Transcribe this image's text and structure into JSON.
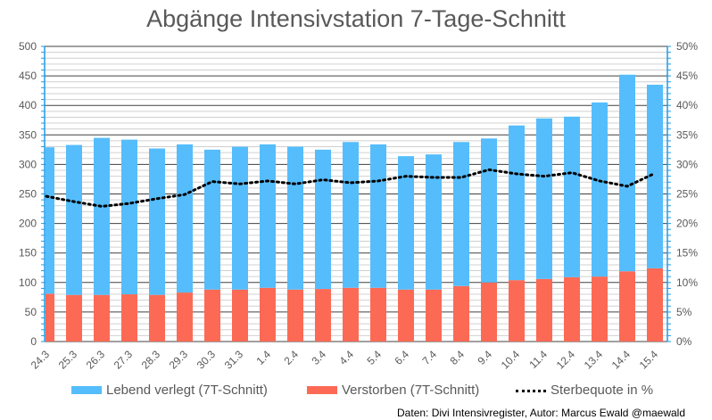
{
  "chart_data": {
    "type": "bar",
    "title": "Abgänge Intensivstation 7-Tage-Schnitt",
    "categories": [
      "24.3",
      "25.3",
      "26.3",
      "27.3",
      "28.3",
      "29.3",
      "30.3",
      "31.3",
      "1.4",
      "2.4",
      "3.4",
      "4.4",
      "5.4",
      "6.4",
      "7.4",
      "8.4",
      "9.4",
      "10.4",
      "11.4",
      "12.4",
      "13.4",
      "14.4",
      "15.4"
    ],
    "series": [
      {
        "name": "Lebend verlegt (7T-Schnitt)",
        "type": "bar-stacked",
        "color": "#55bdfc",
        "values": [
          248,
          254,
          266,
          262,
          248,
          251,
          237,
          242,
          243,
          242,
          236,
          247,
          243,
          226,
          229,
          244,
          244,
          262,
          272,
          272,
          295,
          333,
          311
        ]
      },
      {
        "name": "Verstorben (7T-Schnitt)",
        "type": "bar-stacked",
        "color": "#fc6a55",
        "values": [
          81,
          79,
          79,
          80,
          79,
          83,
          88,
          88,
          91,
          88,
          89,
          91,
          91,
          88,
          88,
          94,
          100,
          104,
          106,
          109,
          110,
          119,
          124
        ]
      },
      {
        "name": "Sterbequote in %",
        "type": "line-dotted",
        "axis": "right",
        "color": "#000000",
        "values": [
          24.6,
          23.7,
          22.9,
          23.4,
          24.2,
          24.9,
          27.1,
          26.7,
          27.2,
          26.7,
          27.4,
          26.9,
          27.2,
          28.0,
          27.8,
          27.8,
          29.1,
          28.4,
          28.0,
          28.6,
          27.2,
          26.3,
          28.5
        ]
      }
    ],
    "ylim": [
      0,
      500
    ],
    "y2lim": [
      0,
      50
    ],
    "yticks": [
      "0",
      "50",
      "100",
      "150",
      "200",
      "250",
      "300",
      "350",
      "400",
      "450",
      "500"
    ],
    "y2ticks": [
      "0%",
      "5%",
      "10%",
      "15%",
      "20%",
      "25%",
      "30%",
      "35%",
      "40%",
      "45%",
      "50%"
    ],
    "grid": true,
    "legend": "bottom"
  },
  "footer": "Daten: Divi Intensivregister, Autor: Marcus Ewald @maewald"
}
